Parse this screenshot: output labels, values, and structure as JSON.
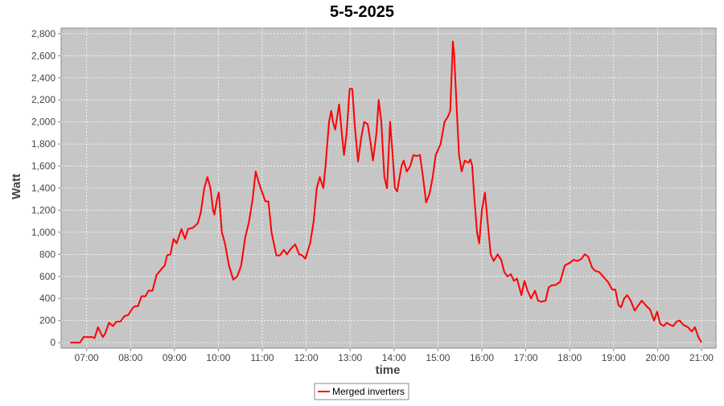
{
  "chart_data": {
    "type": "line",
    "title": "5-5-2025",
    "x_label": "time",
    "y_label": "Watt",
    "xlim": [
      6.42,
      21.33
    ],
    "ylim": [
      -50,
      2850
    ],
    "xticks": [
      {
        "value": 7,
        "label": "07:00"
      },
      {
        "value": 8,
        "label": "08:00"
      },
      {
        "value": 9,
        "label": "09:00"
      },
      {
        "value": 10,
        "label": "10:00"
      },
      {
        "value": 11,
        "label": "11:00"
      },
      {
        "value": 12,
        "label": "12:00"
      },
      {
        "value": 13,
        "label": "13:00"
      },
      {
        "value": 14,
        "label": "14:00"
      },
      {
        "value": 15,
        "label": "15:00"
      },
      {
        "value": 16,
        "label": "16:00"
      },
      {
        "value": 17,
        "label": "17:00"
      },
      {
        "value": 18,
        "label": "18:00"
      },
      {
        "value": 19,
        "label": "19:00"
      },
      {
        "value": 20,
        "label": "20:00"
      },
      {
        "value": 21,
        "label": "21:00"
      }
    ],
    "yticks": [
      0,
      200,
      400,
      600,
      800,
      {
        "value": 1000,
        "label": "1,000"
      },
      {
        "value": 1200,
        "label": "1,200"
      },
      {
        "value": 1400,
        "label": "1,400"
      },
      {
        "value": 1600,
        "label": "1,600"
      },
      {
        "value": 1800,
        "label": "1,800"
      },
      {
        "value": 2000,
        "label": "2,000"
      },
      {
        "value": 2200,
        "label": "2,200"
      },
      {
        "value": 2400,
        "label": "2,400"
      },
      {
        "value": 2600,
        "label": "2,600"
      },
      {
        "value": 2800,
        "label": "2,800"
      }
    ],
    "grid": true,
    "legend": "bottom",
    "x": [
      6.63,
      6.85,
      6.93,
      7.13,
      7.18,
      7.26,
      7.33,
      7.37,
      7.42,
      7.51,
      7.6,
      7.68,
      7.77,
      7.86,
      7.95,
      8.04,
      8.1,
      8.17,
      8.25,
      8.34,
      8.41,
      8.5,
      8.59,
      8.69,
      8.78,
      8.83,
      8.91,
      8.98,
      9.05,
      9.16,
      9.24,
      9.31,
      9.42,
      9.53,
      9.6,
      9.68,
      9.75,
      9.82,
      9.88,
      9.91,
      9.97,
      10.01,
      10.08,
      10.15,
      10.24,
      10.34,
      10.43,
      10.52,
      10.61,
      10.7,
      10.78,
      10.85,
      10.92,
      10.99,
      11.07,
      11.14,
      11.21,
      11.32,
      11.4,
      11.49,
      11.56,
      11.65,
      11.75,
      11.84,
      11.91,
      11.98,
      12.09,
      12.17,
      12.24,
      12.31,
      12.39,
      12.44,
      12.52,
      12.57,
      12.61,
      12.66,
      12.75,
      12.81,
      12.86,
      12.92,
      12.99,
      13.05,
      13.1,
      13.18,
      13.25,
      13.32,
      13.4,
      13.47,
      13.52,
      13.6,
      13.65,
      13.71,
      13.78,
      13.84,
      13.91,
      13.96,
      14.02,
      14.07,
      14.17,
      14.22,
      14.29,
      14.37,
      14.44,
      14.51,
      14.59,
      14.66,
      14.73,
      14.81,
      14.88,
      14.95,
      15.06,
      15.15,
      15.23,
      15.28,
      15.34,
      15.37,
      15.43,
      15.48,
      15.54,
      15.61,
      15.69,
      15.74,
      15.78,
      15.83,
      15.89,
      15.94,
      16.0,
      16.07,
      16.13,
      16.2,
      16.27,
      16.36,
      16.44,
      16.51,
      16.58,
      16.66,
      16.73,
      16.8,
      16.9,
      16.97,
      17.04,
      17.12,
      17.21,
      17.28,
      17.35,
      17.45,
      17.52,
      17.59,
      17.67,
      17.78,
      17.89,
      17.99,
      18.09,
      18.18,
      18.27,
      18.34,
      18.42,
      18.51,
      18.58,
      18.67,
      18.76,
      18.87,
      18.97,
      19.04,
      19.11,
      19.17,
      19.24,
      19.31,
      19.39,
      19.48,
      19.55,
      19.64,
      19.75,
      19.83,
      19.92,
      19.99,
      20.06,
      20.14,
      20.21,
      20.29,
      20.36,
      20.43,
      20.5,
      20.59,
      20.69,
      20.78,
      20.85,
      20.93,
      21.0
    ],
    "series": [
      {
        "name": "Merged inverters",
        "color": "#ff0000",
        "values": [
          0,
          0,
          50,
          50,
          40,
          140,
          80,
          50,
          80,
          180,
          150,
          190,
          190,
          240,
          250,
          310,
          330,
          330,
          420,
          420,
          470,
          470,
          610,
          660,
          700,
          790,
          800,
          940,
          900,
          1030,
          940,
          1030,
          1040,
          1080,
          1180,
          1400,
          1500,
          1400,
          1200,
          1160,
          1300,
          1360,
          1000,
          900,
          700,
          570,
          600,
          700,
          950,
          1100,
          1300,
          1550,
          1450,
          1370,
          1280,
          1280,
          1000,
          790,
          790,
          840,
          800,
          850,
          890,
          800,
          790,
          760,
          900,
          1100,
          1400,
          1500,
          1400,
          1600,
          2000,
          2100,
          2000,
          1930,
          2160,
          1900,
          1700,
          1900,
          2300,
          2300,
          2000,
          1640,
          1850,
          2000,
          1980,
          1800,
          1650,
          1900,
          2200,
          2000,
          1500,
          1400,
          2000,
          1750,
          1400,
          1370,
          1600,
          1650,
          1550,
          1600,
          1700,
          1690,
          1700,
          1500,
          1270,
          1350,
          1500,
          1700,
          1800,
          2000,
          2050,
          2100,
          2730,
          2600,
          2100,
          1700,
          1550,
          1650,
          1630,
          1660,
          1600,
          1300,
          1000,
          900,
          1200,
          1360,
          1100,
          800,
          740,
          800,
          750,
          640,
          600,
          620,
          560,
          580,
          430,
          560,
          470,
          400,
          470,
          380,
          370,
          380,
          500,
          520,
          520,
          550,
          700,
          720,
          750,
          740,
          760,
          800,
          780,
          680,
          650,
          640,
          600,
          550,
          480,
          480,
          340,
          320,
          400,
          430,
          380,
          290,
          330,
          380,
          330,
          300,
          200,
          280,
          170,
          150,
          180,
          160,
          150,
          190,
          200,
          160,
          140,
          100,
          140,
          50,
          0
        ]
      }
    ]
  }
}
